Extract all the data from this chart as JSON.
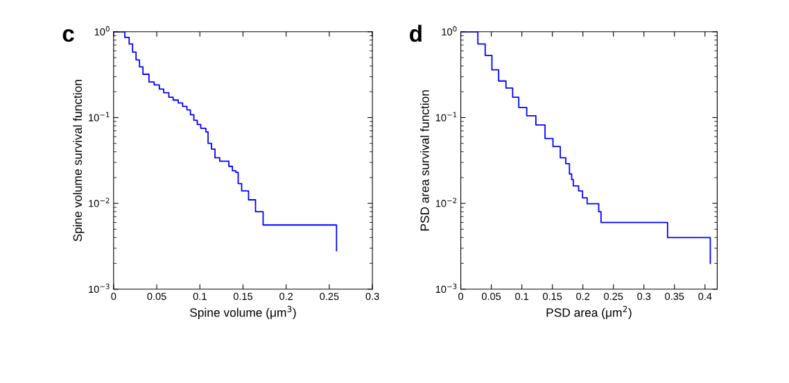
{
  "chart_data": [
    {
      "type": "step",
      "title": "c",
      "xlabel": "Spine volume (μm$^{3}$)",
      "ylabel": "Spine volume survival function",
      "log": "y",
      "grid": false,
      "x": [
        0,
        0.009,
        0.013,
        0.018,
        0.022,
        0.026,
        0.03,
        0.034,
        0.041,
        0.047,
        0.053,
        0.058,
        0.064,
        0.069,
        0.075,
        0.08,
        0.085,
        0.089,
        0.093,
        0.097,
        0.101,
        0.107,
        0.1095,
        0.1135,
        0.1175,
        0.123,
        0.1336,
        0.1377,
        0.1417,
        0.1444,
        0.1484,
        0.1564,
        0.1645,
        0.1733,
        0.2584
      ],
      "series": [
        {
          "color": "#0000ff",
          "values": [
            1,
            1,
            0.86,
            0.72,
            0.58,
            0.47,
            0.39,
            0.32,
            0.26,
            0.24,
            0.215,
            0.195,
            0.173,
            0.16,
            0.148,
            0.135,
            0.123,
            0.108,
            0.093,
            0.083,
            0.075,
            0.068,
            0.05,
            0.043,
            0.034,
            0.031,
            0.027,
            0.024,
            0.023,
            0.017,
            0.014,
            0.011,
            0.008,
            0.0056,
            0.0028
          ]
        }
      ],
      "xlim": [
        0,
        0.3
      ],
      "xticks": [
        0,
        0.05,
        0.1,
        0.15,
        0.2,
        0.25,
        0.3
      ],
      "ylim": [
        0.001,
        1
      ],
      "yticks": [
        {
          "value": 0.001,
          "label": "10$^{−3}$"
        },
        {
          "value": 0.01,
          "label": "10$^{−2}$"
        },
        {
          "value": 0.1,
          "label": "10$^{−1}$"
        },
        {
          "value": 1,
          "label": "10$^{0}$"
        }
      ]
    },
    {
      "type": "step",
      "title": "d",
      "xlabel": "PSD area (μm$^{2}$)",
      "ylabel": "PSD area survival function",
      "log": "y",
      "grid": false,
      "x": [
        0,
        0.017,
        0.028,
        0.04,
        0.051,
        0.062,
        0.074,
        0.085,
        0.095,
        0.108,
        0.123,
        0.138,
        0.151,
        0.163,
        0.172,
        0.178,
        0.1816,
        0.1843,
        0.193,
        0.1994,
        0.207,
        0.2259,
        0.2297,
        0.3387,
        0.4087
      ],
      "series": [
        {
          "color": "#0000ff",
          "values": [
            1,
            1,
            0.72,
            0.53,
            0.36,
            0.267,
            0.221,
            0.173,
            0.131,
            0.105,
            0.082,
            0.057,
            0.046,
            0.034,
            0.029,
            0.022,
            0.019,
            0.016,
            0.014,
            0.0116,
            0.0099,
            0.008,
            0.006,
            0.004,
            0.002
          ]
        }
      ],
      "xlim": [
        0,
        0.42
      ],
      "xticks": [
        0,
        0.05,
        0.1,
        0.15,
        0.2,
        0.25,
        0.3,
        0.35,
        0.4
      ],
      "ylim": [
        0.001,
        1
      ],
      "yticks": [
        {
          "value": 0.001,
          "label": "10$^{−3}$"
        },
        {
          "value": 0.01,
          "label": "10$^{−2}$"
        },
        {
          "value": 0.1,
          "label": "10$^{−1}$"
        },
        {
          "value": 1,
          "label": "10$^{0}$"
        }
      ]
    }
  ]
}
